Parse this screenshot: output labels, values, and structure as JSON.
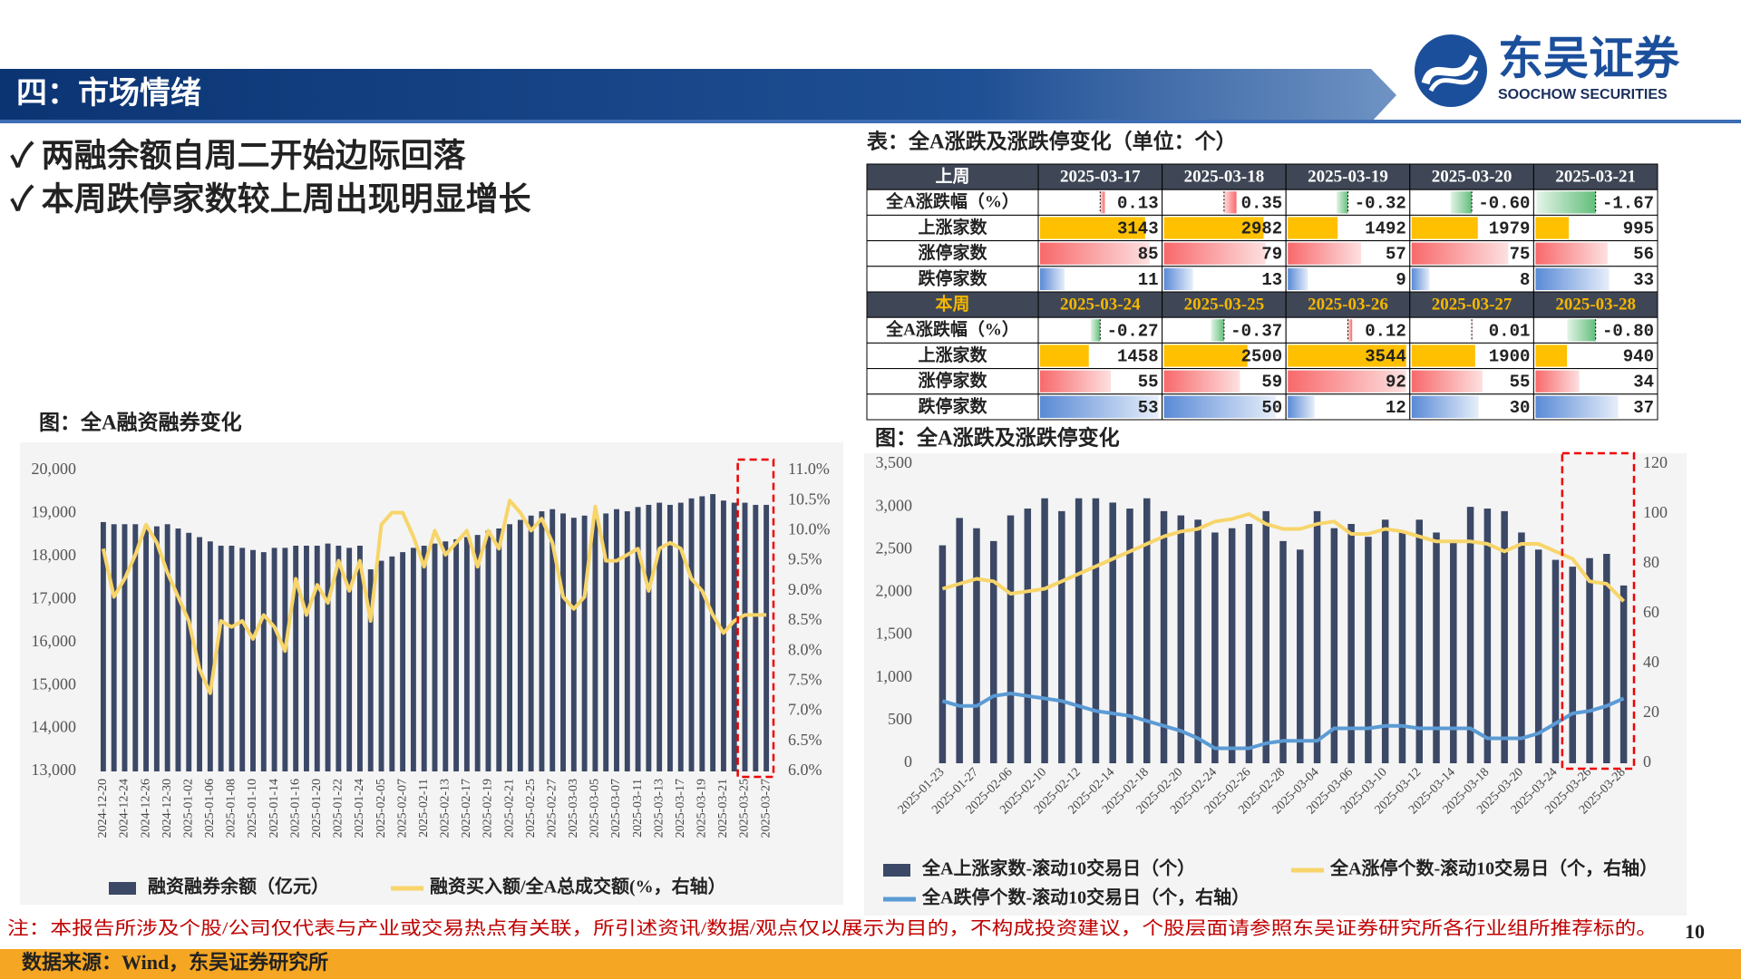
{
  "header": {
    "title": "四：市场情绪",
    "logo": "东吴证券",
    "logo_en": "SOOCHOW SECURITIES"
  },
  "bullets": [
    "✓ 两融余额自周二开始边际回落",
    "✓ 本周跌停家数较上周出现明显增长"
  ],
  "table": {
    "title": "表：全A涨跌及涨跌停变化（单位：个）",
    "blocks": [
      {
        "header": [
          "上周",
          "2025-03-17",
          "2025-03-18",
          "2025-03-19",
          "2025-03-20",
          "2025-03-21"
        ],
        "rows": [
          {
            "label": "全A涨跌幅（%）",
            "cells": [
              "0.13",
              "0.35",
              "-0.32",
              "-0.60",
              "-1.67"
            ]
          },
          {
            "label": "上涨家数",
            "cells": [
              "3143",
              "2982",
              "1492",
              "1979",
              "995"
            ]
          },
          {
            "label": "涨停家数",
            "cells": [
              "85",
              "79",
              "57",
              "75",
              "56"
            ]
          },
          {
            "label": "跌停家数",
            "cells": [
              "11",
              "13",
              "9",
              "8",
              "33"
            ]
          }
        ]
      },
      {
        "header": [
          "本周",
          "2025-03-24",
          "2025-03-25",
          "2025-03-26",
          "2025-03-27",
          "2025-03-28"
        ],
        "rows": [
          {
            "label": "全A涨跌幅（%）",
            "cells": [
              "-0.27",
              "-0.37",
              "0.12",
              "0.01",
              "-0.80"
            ]
          },
          {
            "label": "上涨家数",
            "cells": [
              "1458",
              "2500",
              "3544",
              "1900",
              "940"
            ]
          },
          {
            "label": "涨停家数",
            "cells": [
              "55",
              "59",
              "92",
              "55",
              "34"
            ]
          },
          {
            "label": "跌停家数",
            "cells": [
              "53",
              "50",
              "12",
              "30",
              "37"
            ]
          }
        ]
      }
    ]
  },
  "chart_data": [
    {
      "type": "bar",
      "title": "图：全A融资融券变化",
      "categories": [
        "2024-12-20",
        null,
        "2024-12-24",
        null,
        "2024-12-26",
        null,
        "2024-12-30",
        null,
        "2025-01-02",
        null,
        "2025-01-06",
        null,
        "2025-01-08",
        null,
        "2025-01-10",
        null,
        "2025-01-14",
        null,
        "2025-01-16",
        null,
        "2025-01-20",
        null,
        "2025-01-22",
        null,
        "2025-01-24",
        null,
        "2025-02-05",
        null,
        "2025-02-07",
        null,
        "2025-02-11",
        null,
        "2025-02-13",
        null,
        "2025-02-17",
        null,
        "2025-02-19",
        null,
        "2025-02-21",
        null,
        "2025-02-25",
        null,
        "2025-02-27",
        null,
        "2025-03-03",
        null,
        "2025-03-05",
        null,
        "2025-03-07",
        null,
        "2025-03-11",
        null,
        "2025-03-13",
        null,
        "2025-03-17",
        null,
        "2025-03-19",
        null,
        "2025-03-21",
        null,
        "2025-03-25",
        null,
        "2025-03-27"
      ],
      "series": [
        {
          "name": "融资融券余额（亿元）",
          "type": "bar",
          "color": "#3b4866",
          "values": [
            18800,
            18750,
            18750,
            18750,
            18700,
            18700,
            18750,
            18650,
            18550,
            18450,
            18350,
            18250,
            18250,
            18200,
            18150,
            18100,
            18200,
            18200,
            18250,
            18250,
            18250,
            18300,
            18250,
            18200,
            18250,
            17700,
            17900,
            18000,
            18100,
            18200,
            18250,
            18300,
            18350,
            18400,
            18450,
            18500,
            18600,
            18650,
            18750,
            18850,
            18950,
            19050,
            19100,
            19000,
            18900,
            18950,
            18950,
            19000,
            19100,
            19050,
            19150,
            19200,
            19250,
            19200,
            19250,
            19350,
            19400,
            19450,
            19300,
            19250,
            19250,
            19200,
            19200
          ]
        },
        {
          "name": "融资买入额/全A总成交额(%，右轴）",
          "type": "line",
          "axis": "y2",
          "color": "#f7d56a",
          "values": [
            9.7,
            8.9,
            9.2,
            9.6,
            10.1,
            9.8,
            9.3,
            8.9,
            8.5,
            7.7,
            7.3,
            8.5,
            8.4,
            8.5,
            8.2,
            8.6,
            8.4,
            8.0,
            9.2,
            8.6,
            9.1,
            8.8,
            9.5,
            9.0,
            9.5,
            8.5,
            10.1,
            10.3,
            10.3,
            9.9,
            9.4,
            10.0,
            9.6,
            9.8,
            10.0,
            9.4,
            10.0,
            9.7,
            10.5,
            10.3,
            10.0,
            10.2,
            9.8,
            8.9,
            8.7,
            8.9,
            10.4,
            9.5,
            9.5,
            9.6,
            9.7,
            9.0,
            9.7,
            9.8,
            9.7,
            9.2,
            9.0,
            8.6,
            8.3,
            8.5,
            8.6,
            8.6,
            8.6
          ]
        }
      ],
      "ylim": [
        13000,
        20000
      ],
      "yticks": [
        {
          "value": 13000,
          "label": "13,000"
        },
        {
          "value": 14000,
          "label": "14,000"
        },
        {
          "value": 15000,
          "label": "15,000"
        },
        {
          "value": 16000,
          "label": "16,000"
        },
        {
          "value": 17000,
          "label": "17,000"
        },
        {
          "value": 18000,
          "label": "18,000"
        },
        {
          "value": 19000,
          "label": "19,000"
        },
        {
          "value": 20000,
          "label": "20,000"
        }
      ],
      "y2lim": [
        6,
        11
      ],
      "y2ticks": [
        {
          "value": 6,
          "label": "6.0%"
        },
        {
          "value": 6.5,
          "label": "6.5%"
        },
        {
          "value": 7,
          "label": "7.0%"
        },
        {
          "value": 7.5,
          "label": "7.5%"
        },
        {
          "value": 8,
          "label": "8.0%"
        },
        {
          "value": 8.5,
          "label": "8.5%"
        },
        {
          "value": 9,
          "label": "9.0%"
        },
        {
          "value": 9.5,
          "label": "9.5%"
        },
        {
          "value": 10,
          "label": "10.0%"
        },
        {
          "value": 10.5,
          "label": "10.5%"
        },
        {
          "value": 11,
          "label": "11.0%"
        }
      ]
    },
    {
      "type": "bar",
      "title": "图：全A涨跌及涨跌停变化",
      "categories": [
        "2025-01-23",
        null,
        "2025-01-27",
        null,
        "2025-02-06",
        null,
        "2025-02-10",
        null,
        "2025-02-12",
        null,
        "2025-02-14",
        null,
        "2025-02-18",
        null,
        "2025-02-20",
        null,
        "2025-02-24",
        null,
        "2025-02-26",
        null,
        "2025-02-28",
        null,
        "2025-03-04",
        null,
        "2025-03-06",
        null,
        "2025-03-10",
        null,
        "2025-03-12",
        null,
        "2025-03-14",
        null,
        "2025-03-18",
        null,
        "2025-03-20",
        null,
        "2025-03-24",
        null,
        "2025-03-26",
        null,
        "2025-03-28"
      ],
      "series": [
        {
          "name": "全A上涨家数-滚动10交易日（个）",
          "type": "bar",
          "color": "#3b4866",
          "values": [
            2550,
            2870,
            2750,
            2600,
            2900,
            2980,
            3100,
            2950,
            3100,
            3100,
            3050,
            2980,
            3100,
            2950,
            2900,
            2850,
            2700,
            2750,
            2800,
            2950,
            2600,
            2500,
            2950,
            2750,
            2800,
            2650,
            2850,
            2700,
            2850,
            2700,
            2600,
            3000,
            2980,
            2950,
            2700,
            2500,
            2380,
            2300,
            2400,
            2450,
            2080
          ]
        },
        {
          "name": "全A涨停个数-滚动10交易日（个，右轴）",
          "type": "line",
          "axis": "y2",
          "color": "#f7d56a",
          "values": [
            70,
            72,
            74,
            73,
            68,
            69,
            70,
            73,
            76,
            79,
            82,
            85,
            88,
            91,
            93,
            94,
            97,
            98,
            100,
            96,
            94,
            94,
            96,
            97,
            92,
            92,
            94,
            93,
            91,
            89,
            89,
            89,
            88,
            85,
            88,
            88,
            85,
            82,
            73,
            72,
            65
          ]
        },
        {
          "name": "全A跌停个数-滚动10交易日（个，右轴）",
          "type": "line",
          "axis": "y2",
          "color": "#5b9bd5",
          "values": [
            25,
            23,
            23,
            27,
            28,
            27,
            26,
            25,
            23,
            21,
            20,
            19,
            17,
            15,
            13,
            10,
            6,
            6,
            6,
            8,
            9,
            9,
            9,
            14,
            14,
            14,
            15,
            15,
            14,
            14,
            14,
            14,
            10,
            10,
            10,
            12,
            16,
            20,
            21,
            23,
            26
          ]
        }
      ],
      "ylim": [
        0,
        3500
      ],
      "yticks": [
        0,
        500,
        {
          "value": 1000,
          "label": "1,000"
        },
        {
          "value": 1500,
          "label": "1,500"
        },
        {
          "value": 2000,
          "label": "2,000"
        },
        {
          "value": 2500,
          "label": "2,500"
        },
        {
          "value": 3000,
          "label": "3,000"
        },
        {
          "value": 3500,
          "label": "3,500"
        }
      ],
      "y2lim": [
        0,
        120
      ],
      "y2ticks": [
        0,
        20,
        40,
        60,
        80,
        100,
        120
      ]
    }
  ],
  "footer": {
    "note": "注：本报告所涉及个股/公司仅代表与产业或交易热点有关联，所引述资讯/数据/观点仅以展示为目的，不构成投资建议，个股层面请参照东吴证券研究所各行业组所推荐标的。",
    "page": "10",
    "source": "数据来源：Wind，东吴证券研究所"
  }
}
